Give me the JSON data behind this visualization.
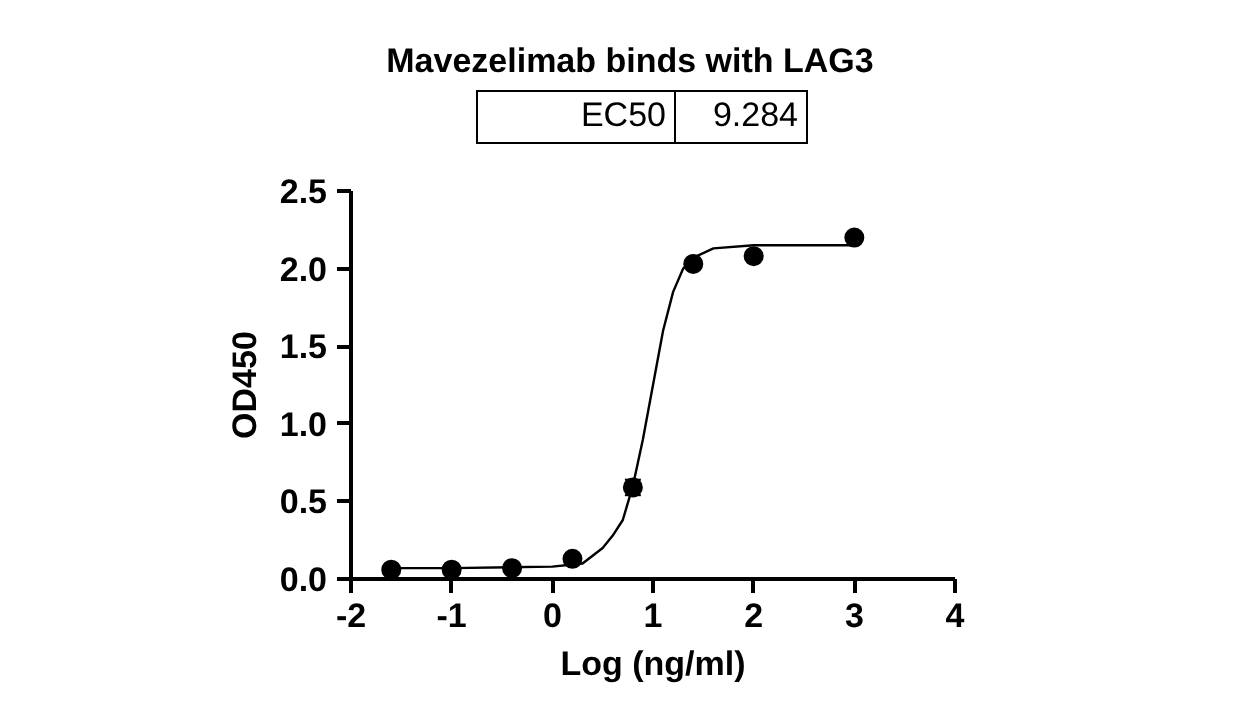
{
  "chart_data": {
    "type": "scatter",
    "title": "Mavezelimab binds with LAG3",
    "xlabel": "Log (ng/ml)",
    "ylabel": "OD450",
    "annotations": [
      "EC50",
      "9.284"
    ],
    "x": [
      -1.6,
      -1,
      -0.4,
      0.2,
      0.8,
      1.4,
      2,
      3
    ],
    "series": [
      {
        "marker": "circle",
        "color": "#000000",
        "values": [
          0.06,
          0.06,
          0.07,
          0.13,
          0.59,
          2.03,
          2.08,
          2.2
        ],
        "errors": [
          null,
          null,
          null,
          null,
          0.05,
          null,
          null,
          null
        ]
      },
      {
        "type": "line",
        "marker": "none",
        "color": "#000000",
        "x": [
          -1.6,
          -1,
          0,
          0.3,
          0.5,
          0.6,
          0.7,
          0.8,
          0.9,
          1.0,
          1.1,
          1.2,
          1.3,
          1.4,
          1.6,
          2,
          3
        ],
        "values": [
          0.07,
          0.07,
          0.08,
          0.1,
          0.2,
          0.28,
          0.38,
          0.6,
          0.9,
          1.25,
          1.6,
          1.85,
          2.0,
          2.07,
          2.13,
          2.15,
          2.15
        ]
      }
    ],
    "grid": false,
    "xlim": [
      -2,
      4
    ],
    "xticks": [
      -2,
      -1,
      0,
      1,
      2,
      3,
      4
    ],
    "ylim": [
      0,
      2.5
    ],
    "yticks": [
      {
        "value": 0,
        "label": "0.0"
      },
      {
        "value": 0.5,
        "label": "0.5"
      },
      {
        "value": 1,
        "label": "1.0"
      },
      {
        "value": 1.5,
        "label": "1.5"
      },
      {
        "value": 2,
        "label": "2.0"
      },
      {
        "value": 2.5,
        "label": "2.5"
      }
    ]
  }
}
